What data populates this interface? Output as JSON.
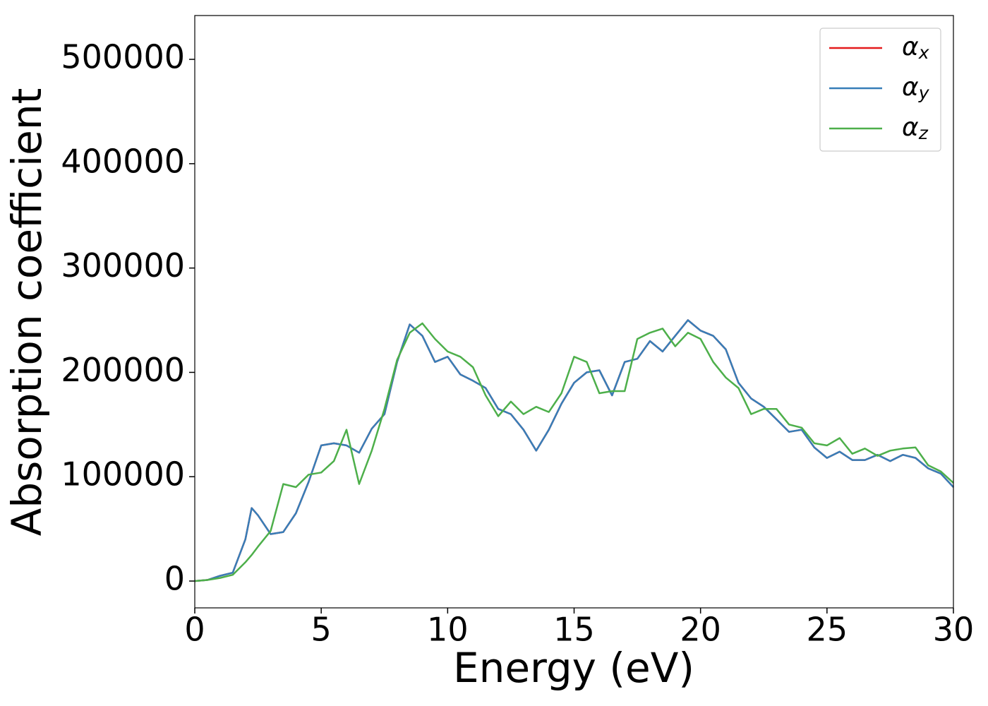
{
  "chart_data": {
    "type": "line",
    "xlabel": "Energy (eV)",
    "ylabel": "Absorption coefficient",
    "x": [
      0,
      0.5,
      1,
      1.5,
      2,
      2.25,
      2.5,
      3,
      3.5,
      4,
      4.5,
      5,
      5.5,
      6,
      6.5,
      7,
      7.5,
      8,
      8.5,
      9,
      9.5,
      10,
      10.5,
      11,
      11.5,
      12,
      12.5,
      13,
      13.5,
      14,
      14.5,
      15,
      15.5,
      16,
      16.5,
      17,
      17.5,
      18,
      18.5,
      19,
      19.5,
      20,
      20.5,
      21,
      21.5,
      22,
      22.5,
      23,
      23.5,
      24,
      24.5,
      25,
      25.5,
      26,
      26.5,
      27,
      27.5,
      28,
      28.5,
      29,
      29.5,
      30
    ],
    "series": [
      {
        "name": "αx",
        "color": "#e41a1c",
        "values": [
          0,
          1000,
          5000,
          8000,
          40000,
          70000,
          63000,
          45000,
          47000,
          65000,
          95000,
          130000,
          132000,
          130000,
          123000,
          146000,
          160000,
          210000,
          246000,
          235000,
          210000,
          215000,
          198000,
          192000,
          185000,
          165000,
          160000,
          145000,
          125000,
          145000,
          170000,
          190000,
          200000,
          202000,
          178000,
          210000,
          213000,
          230000,
          220000,
          235000,
          250000,
          240000,
          235000,
          222000,
          190000,
          175000,
          167000,
          155000,
          143000,
          145000,
          128000,
          118000,
          124000,
          116000,
          116000,
          121000,
          115000,
          121000,
          118000,
          108000,
          103000,
          90000
        ]
      },
      {
        "name": "αy",
        "color": "#377eb8",
        "values": [
          0,
          1000,
          5000,
          8000,
          40000,
          70000,
          63000,
          45000,
          47000,
          65000,
          95000,
          130000,
          132000,
          130000,
          123000,
          146000,
          160000,
          210000,
          246000,
          235000,
          210000,
          215000,
          198000,
          192000,
          185000,
          165000,
          160000,
          145000,
          125000,
          145000,
          170000,
          190000,
          200000,
          202000,
          178000,
          210000,
          213000,
          230000,
          220000,
          235000,
          250000,
          240000,
          235000,
          222000,
          190000,
          175000,
          167000,
          155000,
          143000,
          145000,
          128000,
          118000,
          124000,
          116000,
          116000,
          121000,
          115000,
          121000,
          118000,
          108000,
          103000,
          90000
        ]
      },
      {
        "name": "αz",
        "color": "#4daf4a",
        "values": [
          0,
          1000,
          3000,
          6000,
          18000,
          25000,
          33000,
          48000,
          93000,
          90000,
          102000,
          104000,
          115000,
          145000,
          93000,
          125000,
          165000,
          212000,
          238000,
          247000,
          232000,
          220000,
          215000,
          205000,
          178000,
          158000,
          172000,
          160000,
          167000,
          162000,
          180000,
          215000,
          210000,
          180000,
          182000,
          182000,
          232000,
          238000,
          242000,
          225000,
          238000,
          232000,
          210000,
          195000,
          185000,
          160000,
          165000,
          165000,
          150000,
          147000,
          132000,
          130000,
          137000,
          122000,
          127000,
          120000,
          125000,
          127000,
          128000,
          111000,
          105000,
          94000
        ]
      }
    ],
    "xlim": [
      0,
      30
    ],
    "ylim": [
      -25700,
      542000
    ],
    "xticks": [
      0,
      5,
      10,
      15,
      20,
      25,
      30
    ],
    "yticks": [
      0,
      100000,
      200000,
      300000,
      400000,
      500000
    ],
    "legend": "upper right"
  }
}
